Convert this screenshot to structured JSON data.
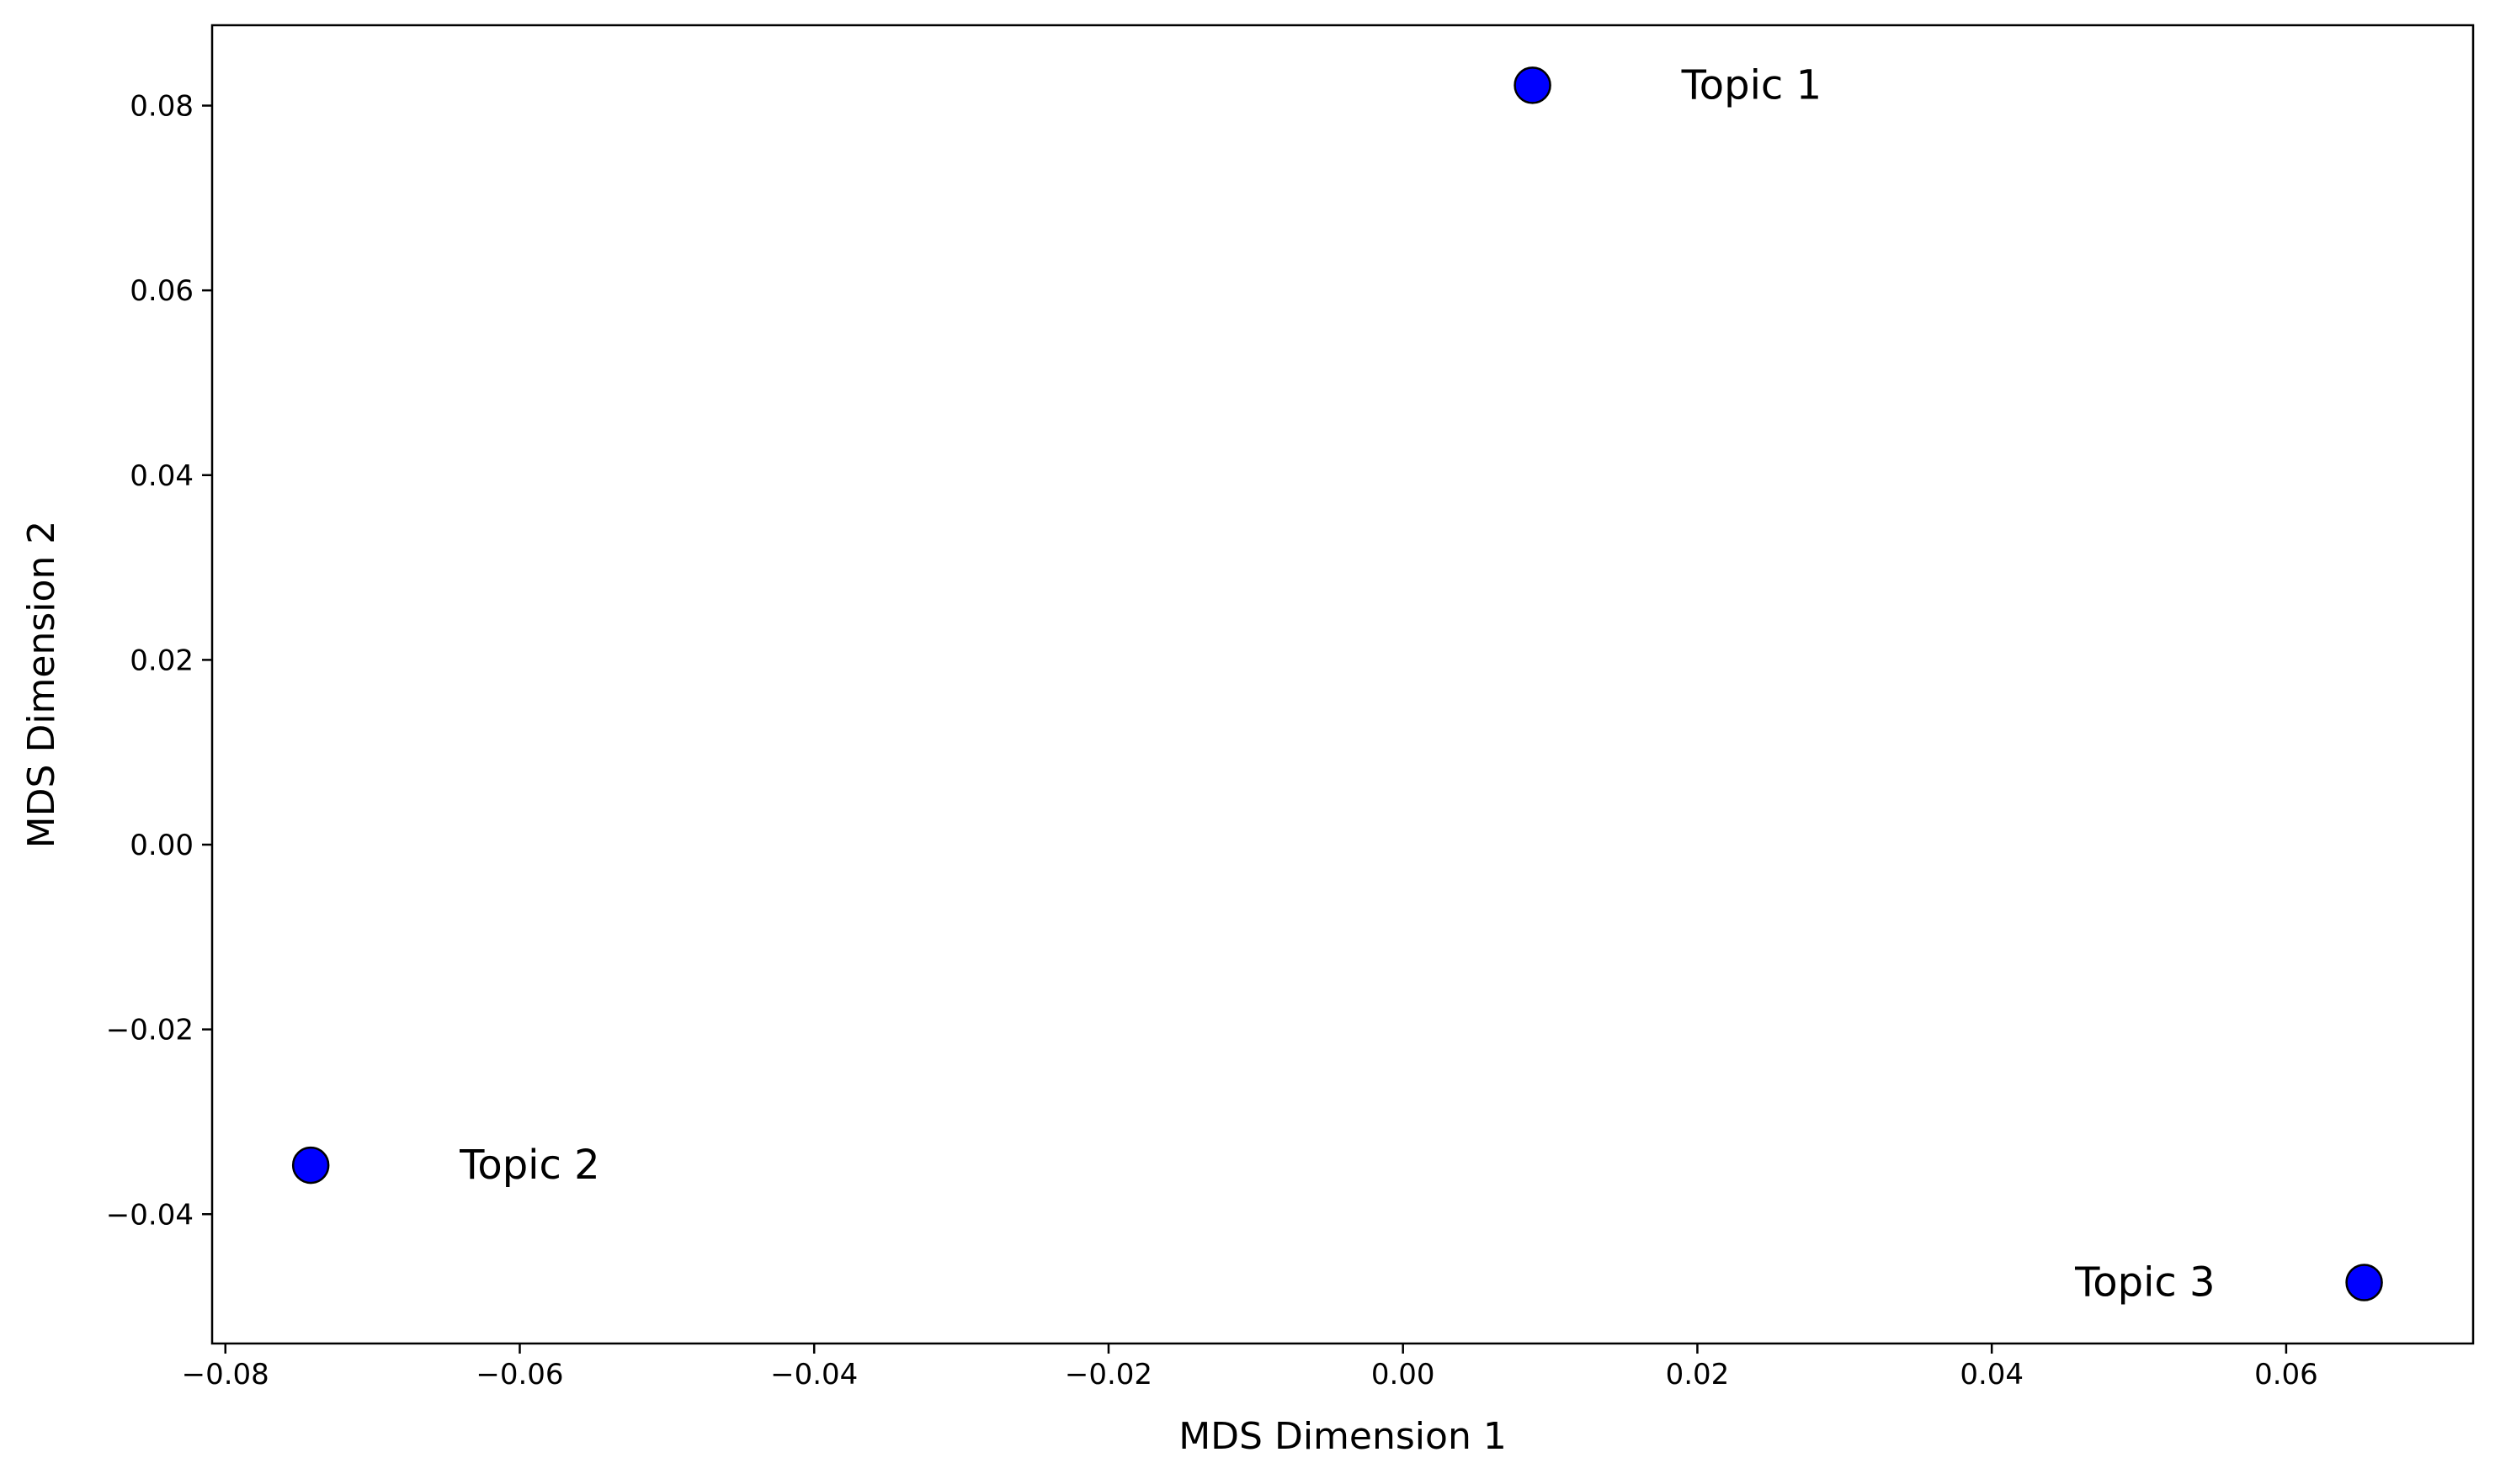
{
  "chart_data": {
    "type": "scatter",
    "title": "",
    "xlabel": "MDS Dimension 1",
    "ylabel": "MDS Dimension 2",
    "xlim": [
      -0.0809,
      0.0727
    ],
    "ylim": [
      -0.054,
      0.0887
    ],
    "x_ticks": [
      -0.08,
      -0.06,
      -0.04,
      -0.02,
      0.0,
      0.02,
      0.04,
      0.06
    ],
    "x_tick_labels": [
      "−0.08",
      "−0.06",
      "−0.04",
      "−0.02",
      "0.00",
      "0.02",
      "0.04",
      "0.06"
    ],
    "y_ticks": [
      -0.04,
      -0.02,
      0.0,
      0.02,
      0.04,
      0.06,
      0.08
    ],
    "y_tick_labels": [
      "−0.04",
      "−0.02",
      "0.00",
      "0.02",
      "0.04",
      "0.06",
      "0.08"
    ],
    "grid": false,
    "legend": "none",
    "marker_color": "#0000ff",
    "marker_edge_color": "#000000",
    "points": [
      {
        "label": "Topic 1",
        "x": 0.0088,
        "y": 0.0822,
        "label_side": "right"
      },
      {
        "label": "Topic 2",
        "x": -0.0742,
        "y": -0.0347,
        "label_side": "right"
      },
      {
        "label": "Topic 3",
        "x": 0.0653,
        "y": -0.0474,
        "label_side": "left"
      }
    ]
  }
}
